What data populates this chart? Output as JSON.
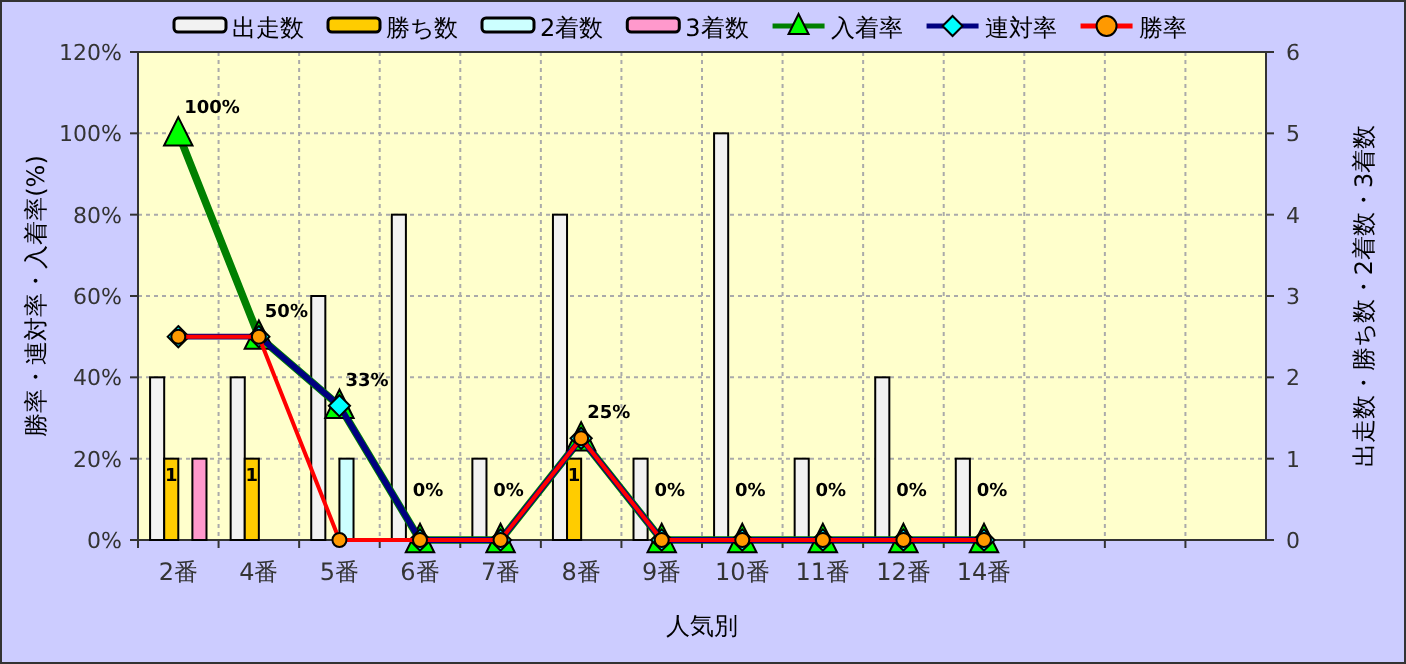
{
  "chart_data": {
    "type": "bar",
    "xlabel": "人気別",
    "ylabel": "勝率・連対率・入着率(%)",
    "y2label": "出走数・勝ち数・2着数・3着数",
    "categories": [
      "2番",
      "4番",
      "5番",
      "6番",
      "7番",
      "8番",
      "9番",
      "10番",
      "11番",
      "12番",
      "14番",
      null,
      null,
      null
    ],
    "series": [
      {
        "name": "出走数",
        "type": "bar",
        "axis": "y2",
        "color": "#f2f2f2",
        "values": [
          2,
          2,
          3,
          4,
          1,
          4,
          1,
          5,
          1,
          2,
          1,
          null,
          null,
          null
        ]
      },
      {
        "name": "勝ち数",
        "type": "bar",
        "axis": "y2",
        "color": "#ffcc00",
        "values": [
          1,
          1,
          0,
          0,
          0,
          1,
          0,
          0,
          0,
          0,
          0,
          null,
          null,
          null
        ],
        "value_labels": [
          "1",
          "1",
          null,
          null,
          null,
          "1",
          null,
          null,
          null,
          null,
          null,
          null,
          null,
          null
        ]
      },
      {
        "name": "2着数",
        "type": "bar",
        "axis": "y2",
        "color": "#ccffff",
        "values": [
          0,
          0,
          1,
          0,
          0,
          0,
          0,
          0,
          0,
          0,
          0,
          null,
          null,
          null
        ]
      },
      {
        "name": "3着数",
        "type": "bar",
        "axis": "y2",
        "color": "#ff99cc",
        "values": [
          1,
          0,
          0,
          0,
          0,
          0,
          0,
          0,
          0,
          0,
          0,
          null,
          null,
          null
        ]
      },
      {
        "name": "入着率",
        "type": "line",
        "color": "#008000",
        "marker": "triangle",
        "colors": [
          "#00ff00",
          "#00ff00",
          "#00ff00",
          "#00ff00",
          "#00ff00",
          "#00ff00",
          "#00ff00",
          "#00ff00",
          "#00ff00",
          "#00ff00",
          "#00ff00",
          null,
          null,
          null
        ],
        "values": [
          100,
          50,
          33,
          0,
          0,
          25,
          0,
          0,
          0,
          0,
          0,
          null,
          null,
          null
        ],
        "value_labels": [
          "100%",
          "50%",
          "33%",
          "0%",
          "0%",
          "25%",
          "0%",
          "0%",
          "0%",
          "0%",
          "0%",
          null,
          null,
          null
        ]
      },
      {
        "name": "連対率",
        "type": "line",
        "color": "#000080",
        "marker": "diamond",
        "colors": [
          "#00ffff",
          "#00ffff",
          "#00ffff",
          "#00ffff",
          "#00ffff",
          "#00ffff",
          "#00ffff",
          "#00ffff",
          "#00ffff",
          "#00ffff",
          "#00ffff",
          null,
          null,
          null
        ],
        "values": [
          50,
          50,
          33,
          0,
          0,
          25,
          0,
          0,
          0,
          0,
          0,
          null,
          null,
          null
        ]
      },
      {
        "name": "勝率",
        "type": "line",
        "color": "#ff0000",
        "marker": "circle",
        "colors": [
          "#ff9900",
          "#ff9900",
          "#ff9900",
          "#ff9900",
          "#ff9900",
          "#ff9900",
          "#ff9900",
          "#ff9900",
          "#ff9900",
          "#ff9900",
          "#ff9900",
          null,
          null,
          null
        ],
        "values": [
          50,
          50,
          0,
          0,
          0,
          25,
          0,
          0,
          0,
          0,
          0,
          null,
          null,
          null
        ]
      }
    ],
    "ylim": [
      0,
      120
    ],
    "yticks": [
      {
        "value": 0,
        "label": "0%"
      },
      {
        "value": 20,
        "label": "20%"
      },
      {
        "value": 40,
        "label": "40%"
      },
      {
        "value": 60,
        "label": "60%"
      },
      {
        "value": 80,
        "label": "80%"
      },
      {
        "value": 100,
        "label": "100%"
      },
      {
        "value": 120,
        "label": "120%"
      }
    ],
    "y2lim": [
      0,
      6
    ],
    "y2ticks": [
      0,
      1,
      2,
      3,
      4,
      5,
      6
    ],
    "grid": true,
    "legend": "top",
    "line_style": "solid"
  }
}
